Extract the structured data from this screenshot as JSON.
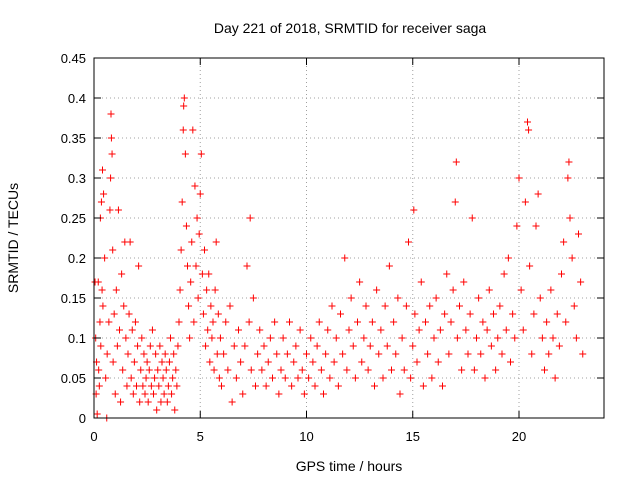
{
  "chart_data": {
    "type": "scatter",
    "title": "Day 221 of 2018, SRMTID for receiver saga",
    "xlabel": "GPS time / hours",
    "ylabel": "SRMTID / TECUs",
    "xlim": [
      0,
      24
    ],
    "ylim": [
      0,
      0.45
    ],
    "xticks": [
      0,
      5,
      10,
      15,
      20
    ],
    "xtick_labels": [
      "0",
      "5",
      "10",
      "15",
      "20"
    ],
    "yticks": [
      0,
      0.05,
      0.1,
      0.15,
      0.2,
      0.25,
      0.3,
      0.35,
      0.4,
      0.45
    ],
    "ytick_labels": [
      "0",
      "0.05",
      "0.1",
      "0.15",
      "0.2",
      "0.25",
      "0.3",
      "0.35",
      "0.4",
      "0.45"
    ],
    "grid": true,
    "marker": "+",
    "colors": {
      "points": "#ff0000",
      "grid": "#a0a0a0",
      "axes": "#000000"
    },
    "series": [
      {
        "name": "SRMTID",
        "points": [
          [
            0.05,
            0.17
          ],
          [
            0.08,
            0.1
          ],
          [
            0.1,
            0.03
          ],
          [
            0.12,
            0.07
          ],
          [
            0.15,
            0.005
          ],
          [
            0.2,
            0.17
          ],
          [
            0.22,
            0.06
          ],
          [
            0.25,
            0.04
          ],
          [
            0.28,
            0.12
          ],
          [
            0.3,
            0.25
          ],
          [
            0.32,
            0.09
          ],
          [
            0.35,
            0.27
          ],
          [
            0.38,
            0.16
          ],
          [
            0.4,
            0.31
          ],
          [
            0.42,
            0.14
          ],
          [
            0.45,
            0.28
          ],
          [
            0.5,
            0.2
          ],
          [
            0.55,
            0.05
          ],
          [
            0.6,
            0.0
          ],
          [
            0.62,
            0.08
          ],
          [
            0.7,
            0.12
          ],
          [
            0.75,
            0.26
          ],
          [
            0.78,
            0.3
          ],
          [
            0.8,
            0.38
          ],
          [
            0.82,
            0.35
          ],
          [
            0.85,
            0.33
          ],
          [
            0.88,
            0.21
          ],
          [
            0.9,
            0.07
          ],
          [
            0.95,
            0.13
          ],
          [
            1.0,
            0.03
          ],
          [
            1.05,
            0.16
          ],
          [
            1.1,
            0.09
          ],
          [
            1.15,
            0.26
          ],
          [
            1.2,
            0.11
          ],
          [
            1.25,
            0.02
          ],
          [
            1.3,
            0.18
          ],
          [
            1.35,
            0.06
          ],
          [
            1.4,
            0.14
          ],
          [
            1.45,
            0.22
          ],
          [
            1.5,
            0.1
          ],
          [
            1.55,
            0.04
          ],
          [
            1.6,
            0.08
          ],
          [
            1.65,
            0.13
          ],
          [
            1.7,
            0.22
          ],
          [
            1.75,
            0.05
          ],
          [
            1.8,
            0.11
          ],
          [
            1.85,
            0.03
          ],
          [
            1.9,
            0.07
          ],
          [
            1.95,
            0.12
          ],
          [
            2.0,
            0.04
          ],
          [
            2.05,
            0.09
          ],
          [
            2.1,
            0.19
          ],
          [
            2.15,
            0.02
          ],
          [
            2.2,
            0.06
          ],
          [
            2.25,
            0.1
          ],
          [
            2.3,
            0.04
          ],
          [
            2.35,
            0.08
          ],
          [
            2.4,
            0.03
          ],
          [
            2.45,
            0.05
          ],
          [
            2.5,
            0.07
          ],
          [
            2.55,
            0.02
          ],
          [
            2.6,
            0.06
          ],
          [
            2.65,
            0.09
          ],
          [
            2.7,
            0.04
          ],
          [
            2.75,
            0.11
          ],
          [
            2.8,
            0.03
          ],
          [
            2.85,
            0.05
          ],
          [
            2.9,
            0.08
          ],
          [
            2.95,
            0.01
          ],
          [
            3.0,
            0.06
          ],
          [
            3.05,
            0.04
          ],
          [
            3.1,
            0.09
          ],
          [
            3.15,
            0.02
          ],
          [
            3.2,
            0.07
          ],
          [
            3.25,
            0.05
          ],
          [
            3.3,
            0.03
          ],
          [
            3.35,
            0.08
          ],
          [
            3.4,
            0.06
          ],
          [
            3.45,
            0.02
          ],
          [
            3.5,
            0.04
          ],
          [
            3.55,
            0.07
          ],
          [
            3.6,
            0.1
          ],
          [
            3.65,
            0.03
          ],
          [
            3.7,
            0.05
          ],
          [
            3.75,
            0.08
          ],
          [
            3.8,
            0.01
          ],
          [
            3.85,
            0.06
          ],
          [
            3.9,
            0.04
          ],
          [
            3.95,
            0.09
          ],
          [
            4.0,
            0.12
          ],
          [
            4.05,
            0.16
          ],
          [
            4.1,
            0.21
          ],
          [
            4.15,
            0.27
          ],
          [
            4.2,
            0.36
          ],
          [
            4.22,
            0.39
          ],
          [
            4.25,
            0.4
          ],
          [
            4.3,
            0.33
          ],
          [
            4.35,
            0.24
          ],
          [
            4.4,
            0.19
          ],
          [
            4.45,
            0.14
          ],
          [
            4.5,
            0.1
          ],
          [
            4.55,
            0.17
          ],
          [
            4.6,
            0.22
          ],
          [
            4.65,
            0.36
          ],
          [
            4.7,
            0.12
          ],
          [
            4.75,
            0.29
          ],
          [
            4.8,
            0.19
          ],
          [
            4.85,
            0.25
          ],
          [
            4.9,
            0.15
          ],
          [
            4.95,
            0.23
          ],
          [
            5.0,
            0.28
          ],
          [
            5.05,
            0.33
          ],
          [
            5.1,
            0.18
          ],
          [
            5.15,
            0.13
          ],
          [
            5.2,
            0.21
          ],
          [
            5.25,
            0.09
          ],
          [
            5.3,
            0.16
          ],
          [
            5.35,
            0.11
          ],
          [
            5.4,
            0.18
          ],
          [
            5.45,
            0.07
          ],
          [
            5.5,
            0.14
          ],
          [
            5.55,
            0.1
          ],
          [
            5.6,
            0.12
          ],
          [
            5.65,
            0.06
          ],
          [
            5.7,
            0.16
          ],
          [
            5.75,
            0.22
          ],
          [
            5.8,
            0.08
          ],
          [
            5.85,
            0.13
          ],
          [
            5.9,
            0.05
          ],
          [
            5.95,
            0.1
          ],
          [
            6.0,
            0.04
          ],
          [
            6.1,
            0.08
          ],
          [
            6.2,
            0.12
          ],
          [
            6.3,
            0.06
          ],
          [
            6.4,
            0.14
          ],
          [
            6.5,
            0.02
          ],
          [
            6.6,
            0.09
          ],
          [
            6.7,
            0.05
          ],
          [
            6.8,
            0.11
          ],
          [
            6.9,
            0.07
          ],
          [
            7.0,
            0.03
          ],
          [
            7.1,
            0.09
          ],
          [
            7.2,
            0.19
          ],
          [
            7.3,
            0.12
          ],
          [
            7.35,
            0.25
          ],
          [
            7.4,
            0.06
          ],
          [
            7.5,
            0.15
          ],
          [
            7.6,
            0.04
          ],
          [
            7.7,
            0.08
          ],
          [
            7.8,
            0.11
          ],
          [
            7.9,
            0.06
          ],
          [
            8.0,
            0.09
          ],
          [
            8.1,
            0.04
          ],
          [
            8.2,
            0.07
          ],
          [
            8.3,
            0.1
          ],
          [
            8.4,
            0.05
          ],
          [
            8.5,
            0.12
          ],
          [
            8.6,
            0.08
          ],
          [
            8.7,
            0.03
          ],
          [
            8.8,
            0.06
          ],
          [
            8.9,
            0.1
          ],
          [
            9.0,
            0.05
          ],
          [
            9.1,
            0.08
          ],
          [
            9.2,
            0.12
          ],
          [
            9.3,
            0.04
          ],
          [
            9.4,
            0.07
          ],
          [
            9.5,
            0.09
          ],
          [
            9.6,
            0.05
          ],
          [
            9.7,
            0.11
          ],
          [
            9.8,
            0.06
          ],
          [
            9.9,
            0.03
          ],
          [
            10.0,
            0.08
          ],
          [
            10.1,
            0.05
          ],
          [
            10.2,
            0.1
          ],
          [
            10.3,
            0.07
          ],
          [
            10.4,
            0.04
          ],
          [
            10.5,
            0.09
          ],
          [
            10.6,
            0.12
          ],
          [
            10.7,
            0.06
          ],
          [
            10.8,
            0.03
          ],
          [
            10.9,
            0.08
          ],
          [
            11.0,
            0.11
          ],
          [
            11.1,
            0.05
          ],
          [
            11.2,
            0.14
          ],
          [
            11.3,
            0.07
          ],
          [
            11.4,
            0.1
          ],
          [
            11.5,
            0.04
          ],
          [
            11.6,
            0.13
          ],
          [
            11.7,
            0.08
          ],
          [
            11.8,
            0.2
          ],
          [
            11.9,
            0.06
          ],
          [
            12.0,
            0.11
          ],
          [
            12.1,
            0.15
          ],
          [
            12.2,
            0.09
          ],
          [
            12.3,
            0.05
          ],
          [
            12.4,
            0.12
          ],
          [
            12.5,
            0.17
          ],
          [
            12.6,
            0.07
          ],
          [
            12.7,
            0.1
          ],
          [
            12.8,
            0.14
          ],
          [
            12.9,
            0.06
          ],
          [
            13.0,
            0.09
          ],
          [
            13.1,
            0.12
          ],
          [
            13.2,
            0.04
          ],
          [
            13.3,
            0.16
          ],
          [
            13.4,
            0.08
          ],
          [
            13.5,
            0.11
          ],
          [
            13.6,
            0.05
          ],
          [
            13.7,
            0.14
          ],
          [
            13.8,
            0.09
          ],
          [
            13.9,
            0.19
          ],
          [
            14.0,
            0.06
          ],
          [
            14.1,
            0.12
          ],
          [
            14.2,
            0.08
          ],
          [
            14.3,
            0.15
          ],
          [
            14.4,
            0.03
          ],
          [
            14.5,
            0.1
          ],
          [
            14.6,
            0.06
          ],
          [
            14.7,
            0.14
          ],
          [
            14.8,
            0.22
          ],
          [
            14.9,
            0.05
          ],
          [
            15.0,
            0.09
          ],
          [
            15.05,
            0.26
          ],
          [
            15.1,
            0.13
          ],
          [
            15.2,
            0.07
          ],
          [
            15.3,
            0.11
          ],
          [
            15.4,
            0.17
          ],
          [
            15.5,
            0.04
          ],
          [
            15.6,
            0.12
          ],
          [
            15.7,
            0.08
          ],
          [
            15.8,
            0.14
          ],
          [
            15.9,
            0.05
          ],
          [
            16.0,
            0.1
          ],
          [
            16.1,
            0.15
          ],
          [
            16.2,
            0.07
          ],
          [
            16.3,
            0.11
          ],
          [
            16.4,
            0.04
          ],
          [
            16.5,
            0.13
          ],
          [
            16.6,
            0.18
          ],
          [
            16.7,
            0.08
          ],
          [
            16.8,
            0.12
          ],
          [
            16.9,
            0.16
          ],
          [
            17.0,
            0.27
          ],
          [
            17.05,
            0.32
          ],
          [
            17.1,
            0.1
          ],
          [
            17.2,
            0.14
          ],
          [
            17.3,
            0.06
          ],
          [
            17.4,
            0.17
          ],
          [
            17.5,
            0.11
          ],
          [
            17.6,
            0.08
          ],
          [
            17.7,
            0.13
          ],
          [
            17.8,
            0.25
          ],
          [
            17.9,
            0.06
          ],
          [
            18.0,
            0.1
          ],
          [
            18.1,
            0.15
          ],
          [
            18.2,
            0.08
          ],
          [
            18.3,
            0.12
          ],
          [
            18.4,
            0.05
          ],
          [
            18.5,
            0.11
          ],
          [
            18.6,
            0.16
          ],
          [
            18.7,
            0.09
          ],
          [
            18.8,
            0.13
          ],
          [
            18.9,
            0.06
          ],
          [
            19.0,
            0.1
          ],
          [
            19.1,
            0.14
          ],
          [
            19.2,
            0.08
          ],
          [
            19.3,
            0.18
          ],
          [
            19.4,
            0.11
          ],
          [
            19.5,
            0.2
          ],
          [
            19.6,
            0.07
          ],
          [
            19.7,
            0.13
          ],
          [
            19.8,
            0.1
          ],
          [
            19.9,
            0.24
          ],
          [
            20.0,
            0.3
          ],
          [
            20.1,
            0.16
          ],
          [
            20.2,
            0.11
          ],
          [
            20.3,
            0.27
          ],
          [
            20.4,
            0.37
          ],
          [
            20.45,
            0.36
          ],
          [
            20.5,
            0.19
          ],
          [
            20.6,
            0.08
          ],
          [
            20.7,
            0.13
          ],
          [
            20.8,
            0.24
          ],
          [
            20.9,
            0.28
          ],
          [
            21.0,
            0.15
          ],
          [
            21.1,
            0.1
          ],
          [
            21.2,
            0.06
          ],
          [
            21.3,
            0.12
          ],
          [
            21.4,
            0.08
          ],
          [
            21.5,
            0.16
          ],
          [
            21.6,
            0.1
          ],
          [
            21.7,
            0.05
          ],
          [
            21.8,
            0.13
          ],
          [
            21.9,
            0.09
          ],
          [
            22.0,
            0.18
          ],
          [
            22.1,
            0.22
          ],
          [
            22.2,
            0.12
          ],
          [
            22.3,
            0.3
          ],
          [
            22.35,
            0.32
          ],
          [
            22.4,
            0.25
          ],
          [
            22.5,
            0.2
          ],
          [
            22.6,
            0.14
          ],
          [
            22.7,
            0.1
          ],
          [
            22.8,
            0.23
          ],
          [
            22.9,
            0.17
          ],
          [
            23.0,
            0.08
          ]
        ]
      }
    ]
  }
}
